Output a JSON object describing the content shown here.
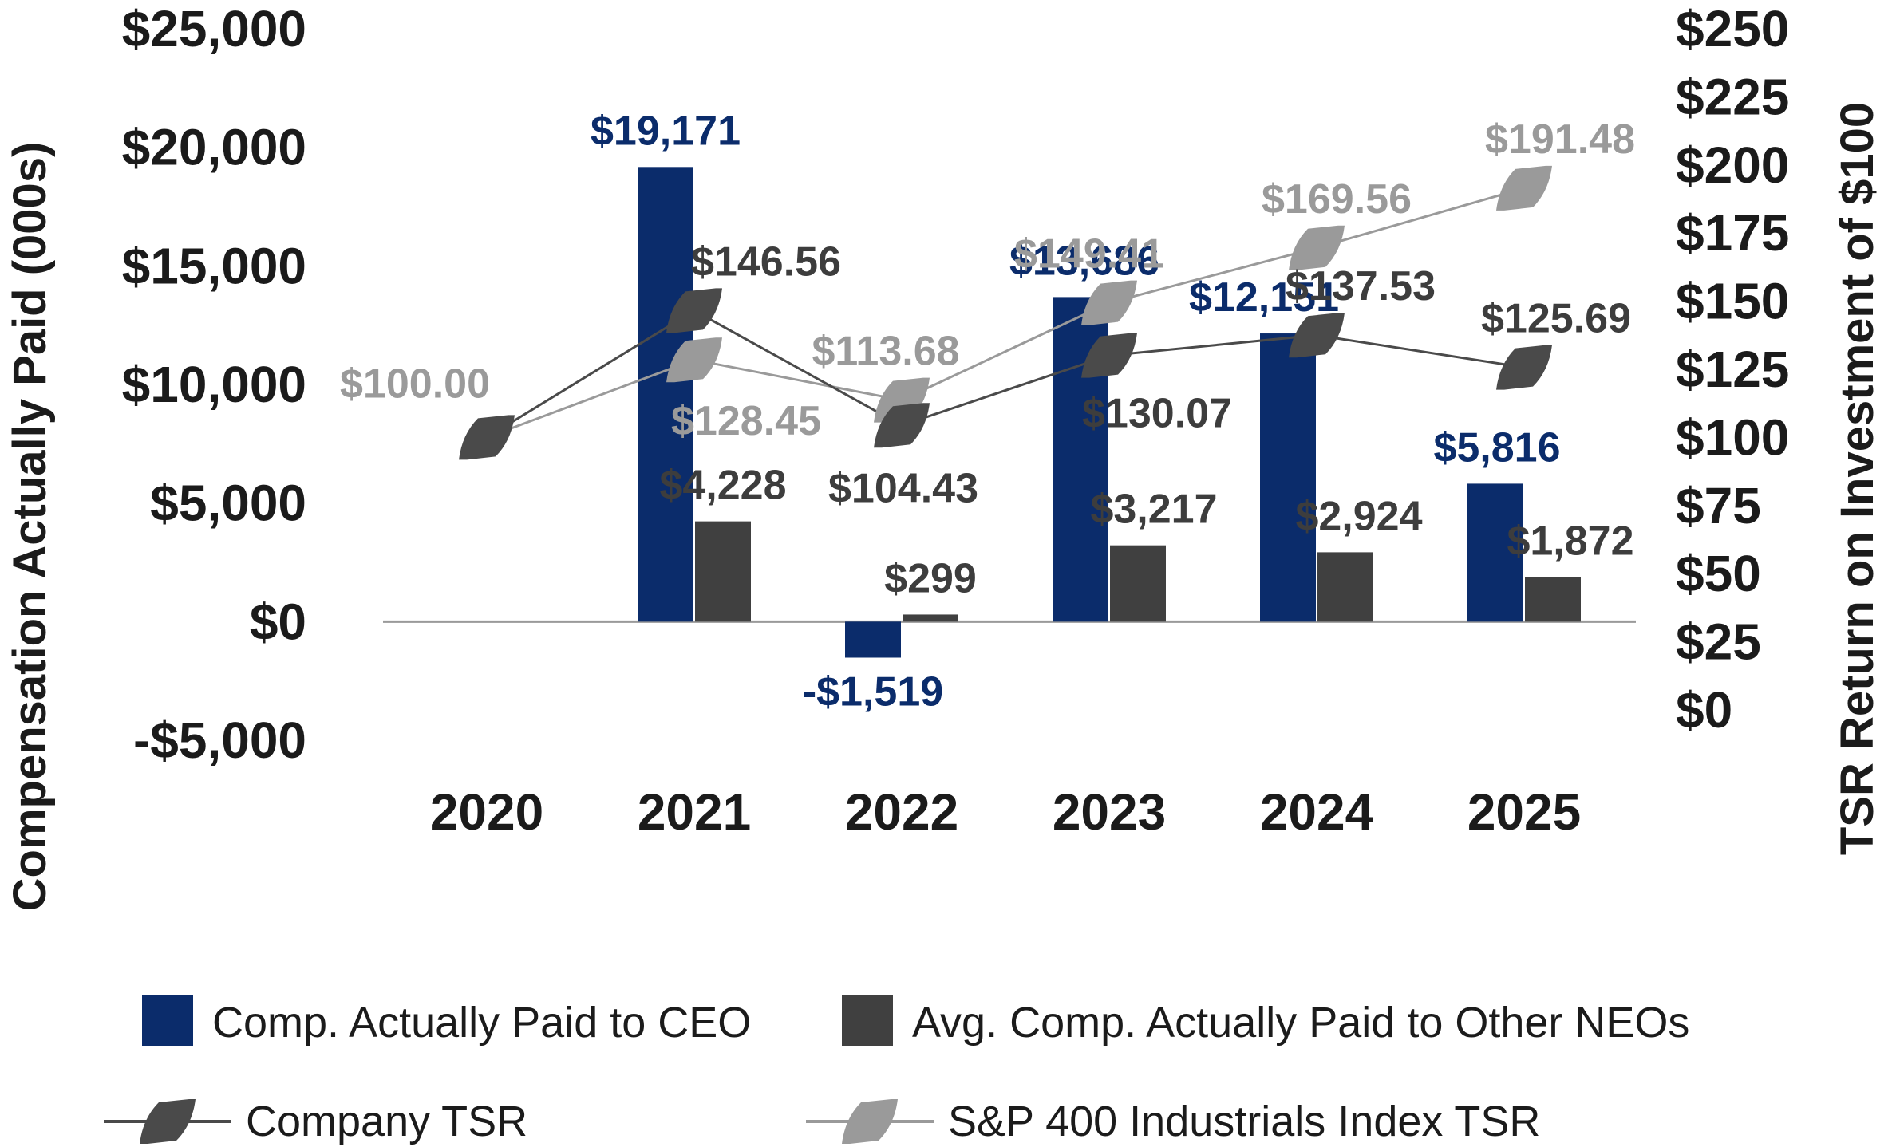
{
  "chart_data": {
    "type": "bar",
    "title": "",
    "categories": [
      "2020",
      "2021",
      "2022",
      "2023",
      "2024",
      "2025"
    ],
    "y_left": {
      "label": "Compensation Actually Paid (000s)",
      "ylim": [
        -5000,
        25000
      ],
      "ticks": [
        25000,
        20000,
        15000,
        10000,
        5000,
        0,
        -5000
      ],
      "tick_labels": [
        "$25,000",
        "$20,000",
        "$15,000",
        "$10,000",
        "$5,000",
        "$0",
        "-$5,000"
      ]
    },
    "y_right": {
      "label": "TSR Return on Investment of $100",
      "ylim": [
        0,
        250
      ],
      "ticks": [
        250,
        225,
        200,
        175,
        150,
        125,
        100,
        75,
        50,
        25,
        0
      ],
      "tick_labels": [
        "$250",
        "$225",
        "$200",
        "$175",
        "$150",
        "$125",
        "$100",
        "$75",
        "$50",
        "$25",
        "$0"
      ]
    },
    "bar_series": [
      {
        "name": "Comp. Actually Paid to CEO",
        "color": "#0b2c6b",
        "label_color": "#0b2c6b",
        "values": [
          null,
          19171,
          -1519,
          13686,
          12151,
          5816
        ],
        "labels": [
          null,
          "$19,171",
          "-$1,519",
          "$13,686",
          "$12,151",
          "$5,816"
        ]
      },
      {
        "name": "Avg. Comp. Actually Paid to Other NEOs",
        "color": "#404040",
        "label_color": "#3d3d3d",
        "values": [
          null,
          4228,
          299,
          3217,
          2924,
          1872
        ],
        "labels": [
          null,
          "$4,228",
          "$299",
          "$3,217",
          "$2,924",
          "$1,872"
        ]
      }
    ],
    "line_series": [
      {
        "name": "Company TSR",
        "axis": "right",
        "color": "#4a4a4a",
        "label_color": "#3d3d3d",
        "values": [
          100.0,
          146.56,
          104.43,
          130.07,
          137.53,
          125.69
        ],
        "labels": [
          "",
          "$146.56",
          "$104.43",
          "$130.07",
          "$137.53",
          "$125.69"
        ]
      },
      {
        "name": "S&P 400 Industrials Index TSR",
        "axis": "right",
        "color": "#9a9a9a",
        "label_color": "#9a9a9a",
        "values": [
          100.0,
          128.45,
          113.68,
          149.41,
          169.56,
          191.48
        ],
        "labels": [
          "$100.00",
          "$128.45",
          "$113.68",
          "$149.41",
          "$169.56",
          "$191.48"
        ]
      }
    ],
    "legend": [
      {
        "name": "Comp. Actually Paid to CEO",
        "kind": "box",
        "color": "#0b2c6b"
      },
      {
        "name": "Avg. Comp. Actually Paid to Other NEOs",
        "kind": "box",
        "color": "#404040"
      },
      {
        "name": "Company TSR",
        "kind": "line",
        "color": "#4a4a4a"
      },
      {
        "name": "S&P 400 Industrials Index TSR",
        "kind": "line",
        "color": "#9a9a9a"
      }
    ],
    "legend_position": "bottom"
  }
}
